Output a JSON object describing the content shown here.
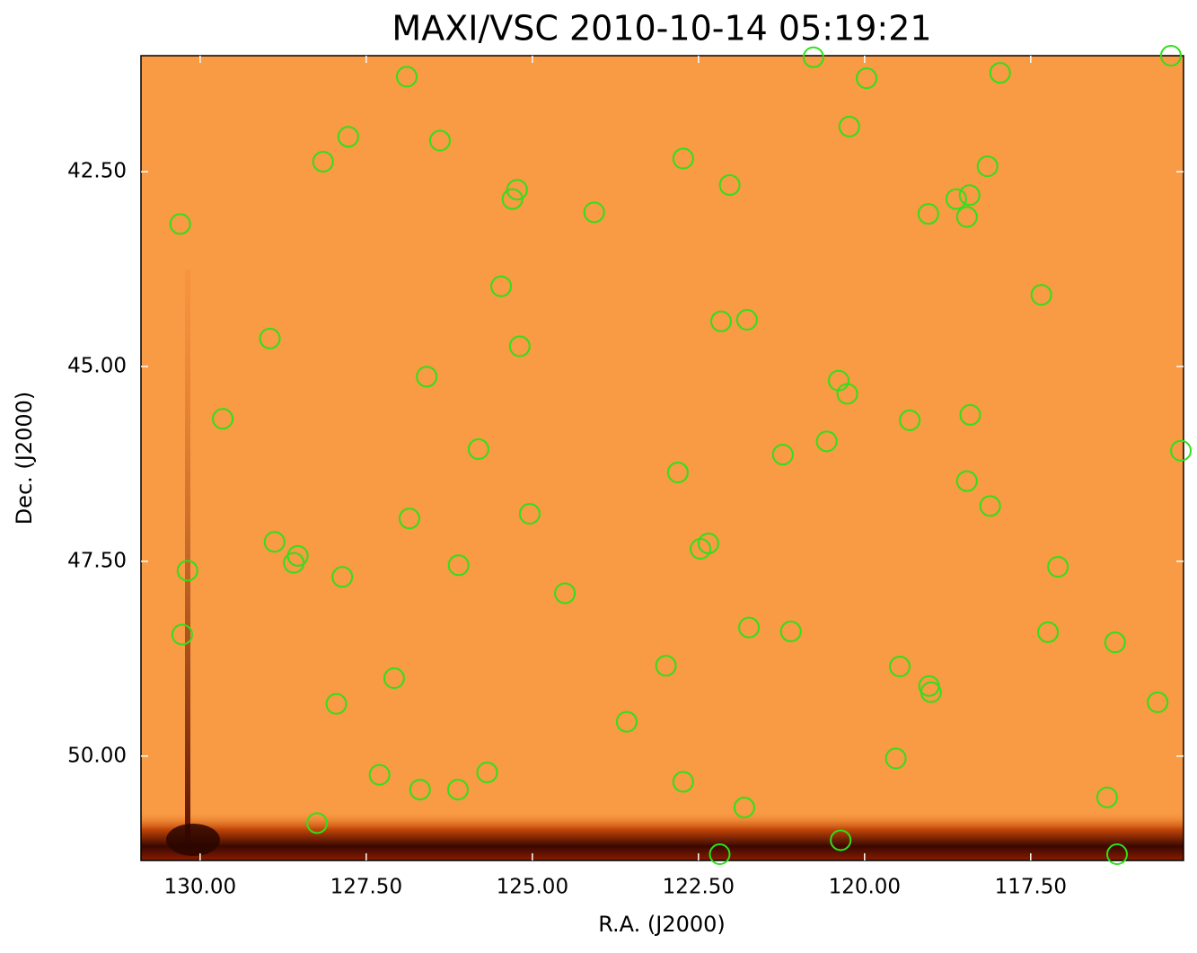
{
  "chart_data": {
    "type": "scatter",
    "title": "MAXI/VSC 2010-10-14 05:19:21",
    "x_label": "R.A. (J2000)",
    "y_label": "Dec. (J2000)",
    "marker_color": "#2ee01a",
    "grid": false,
    "xlim": [
      130.89,
      115.2
    ],
    "ylim": [
      51.34,
      41.01
    ],
    "xticks": [
      {
        "value": 130,
        "label": "130.00"
      },
      {
        "value": 127.5,
        "label": "127.50"
      },
      {
        "value": 125,
        "label": "125.00"
      },
      {
        "value": 122.5,
        "label": "122.50"
      },
      {
        "value": 120,
        "label": "120.00"
      },
      {
        "value": 117.5,
        "label": "117.50"
      }
    ],
    "yticks": [
      {
        "value": 42.5,
        "label": "42.50"
      },
      {
        "value": 45,
        "label": "45.00"
      },
      {
        "value": 47.5,
        "label": "47.50"
      },
      {
        "value": 50,
        "label": "50.00"
      }
    ],
    "x": [
      130.3,
      126.89,
      128.15,
      127.77,
      126.39,
      125.23,
      125.3,
      124.07,
      122.73,
      122.03,
      120.77,
      119.97,
      120.23,
      117.96,
      118.15,
      118.62,
      118.42,
      119.04,
      118.46,
      115.39,
      125.47,
      117.34,
      128.95,
      125.19,
      122.16,
      121.77,
      126.59,
      129.66,
      120.39,
      120.26,
      119.32,
      118.41,
      125.81,
      120.57,
      121.23,
      115.24,
      122.81,
      118.46,
      118.11,
      126.85,
      125.04,
      128.88,
      128.53,
      128.59,
      130.19,
      127.86,
      126.11,
      122.47,
      122.35,
      117.09,
      124.51,
      130.27,
      121.74,
      121.11,
      117.24,
      116.23,
      122.99,
      119.47,
      127.08,
      119.03,
      119.0,
      127.95,
      115.59,
      123.58,
      119.53,
      127.3,
      125.68,
      126.69,
      126.12,
      122.73,
      116.35,
      121.81,
      128.24,
      120.36,
      122.18,
      116.2
    ],
    "values": [
      43.17,
      41.28,
      42.37,
      42.05,
      42.1,
      42.73,
      42.85,
      43.02,
      42.33,
      42.67,
      41.03,
      41.3,
      41.92,
      41.23,
      42.43,
      42.85,
      42.8,
      43.04,
      43.08,
      41.01,
      43.97,
      44.08,
      44.64,
      44.74,
      44.42,
      44.4,
      45.13,
      45.67,
      45.18,
      45.35,
      45.69,
      45.62,
      46.06,
      45.96,
      46.13,
      46.08,
      46.36,
      46.47,
      46.79,
      46.95,
      46.89,
      47.25,
      47.43,
      47.52,
      47.62,
      47.7,
      47.55,
      47.34,
      47.27,
      47.57,
      47.91,
      48.44,
      48.35,
      48.4,
      48.41,
      48.54,
      48.84,
      48.85,
      49.0,
      49.1,
      49.18,
      49.33,
      49.31,
      49.56,
      50.03,
      50.24,
      50.21,
      50.43,
      50.43,
      50.33,
      50.53,
      50.66,
      50.86,
      51.08,
      51.26,
      51.26
    ]
  }
}
